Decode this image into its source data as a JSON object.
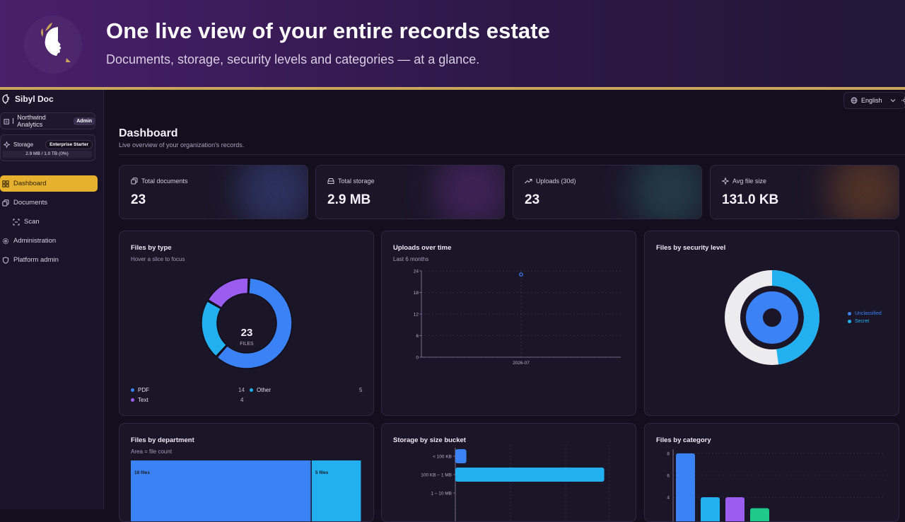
{
  "banner": {
    "title": "One live view of your entire records estate",
    "subtitle": "Documents, storage, security levels and categories — at a glance."
  },
  "sidebar": {
    "brand": "Sibyl Doc",
    "org_name": "Northwind Analytics",
    "role_badge": "Admin",
    "storage_label": "Storage",
    "plan_badge": "Enterprise Starter",
    "storage_usage": "2.9 MB / 1.0 TB (0%)",
    "storage_percent": 0,
    "nav": [
      {
        "label": "Dashboard",
        "icon": "grid-icon",
        "active": true
      },
      {
        "label": "Documents",
        "icon": "documents-icon"
      },
      {
        "label": "Scan",
        "icon": "scan-icon"
      },
      {
        "label": "Administration",
        "icon": "gear-icon"
      },
      {
        "label": "Platform admin",
        "icon": "shield-icon"
      }
    ]
  },
  "header": {
    "language": "English"
  },
  "page": {
    "title": "Dashboard",
    "subtitle": "Live overview of your organization's records."
  },
  "stats": [
    {
      "label": "Total documents",
      "value": "23",
      "icon": "documents-icon",
      "glow": "#3b4a8a"
    },
    {
      "label": "Total storage",
      "value": "2.9 MB",
      "icon": "drive-icon",
      "glow": "#5a2f7a"
    },
    {
      "label": "Uploads (30d)",
      "value": "23",
      "icon": "trend-up-icon",
      "glow": "#2a5a5e"
    },
    {
      "label": "Avg file size",
      "value": "131.0 KB",
      "icon": "sparkle-icon",
      "glow": "#7a4a2a"
    }
  ],
  "cards": {
    "files_by_type": {
      "title": "Files by type",
      "subtitle": "Hover a slice to focus",
      "center_value": "23",
      "center_label": "FILES"
    },
    "uploads_over_time": {
      "title": "Uploads over time",
      "subtitle": "Last 6 months"
    },
    "files_by_security": {
      "title": "Files by security level"
    },
    "files_by_department": {
      "title": "Files by department",
      "subtitle": "Area = file count"
    },
    "storage_by_size": {
      "title": "Storage by size bucket"
    },
    "files_by_category": {
      "title": "Files by category"
    }
  },
  "chart_data": [
    {
      "type": "pie",
      "title": "Files by type",
      "categories": [
        "PDF",
        "Other",
        "Text"
      ],
      "values": [
        14,
        5,
        4
      ],
      "colors": [
        "#3b82f6",
        "#22b0f0",
        "#9b5cf0"
      ],
      "center_value": "23",
      "center_label": "FILES"
    },
    {
      "type": "line",
      "title": "Uploads over time",
      "x": [
        "2026-07"
      ],
      "y": [
        23
      ],
      "ylim": [
        0,
        24
      ],
      "yticks": [
        0,
        6,
        12,
        18,
        24
      ],
      "grid": true,
      "color": "#3b82f6"
    },
    {
      "type": "pie",
      "title": "Files by security level",
      "categories": [
        "Unclassified",
        "Secret"
      ],
      "values": [
        12,
        11
      ],
      "colors": [
        "#3b82f6",
        "#22b0f0"
      ],
      "legend": "right"
    },
    {
      "type": "treemap",
      "title": "Files by department",
      "values": [
        18,
        5
      ],
      "labels": [
        "18 files",
        "5 files"
      ],
      "colors": [
        "#3b82f6",
        "#22b0f0"
      ]
    },
    {
      "type": "bar",
      "orientation": "horizontal",
      "title": "Storage by size bucket",
      "categories": [
        "< 100 KB",
        "100 KB – 1 MB",
        "1 – 10 MB"
      ],
      "values": [
        0.2,
        2.7,
        0
      ],
      "colors": [
        "#3b82f6",
        "#22b0f0",
        "#9b5cf0"
      ],
      "grid": true
    },
    {
      "type": "bar",
      "title": "Files by category",
      "values": [
        8,
        4,
        4,
        3
      ],
      "yticks": [
        4,
        6,
        8
      ],
      "colors": [
        "#3b82f6",
        "#22b0f0",
        "#9b5cf0",
        "#1ec98a"
      ],
      "grid": true
    }
  ]
}
